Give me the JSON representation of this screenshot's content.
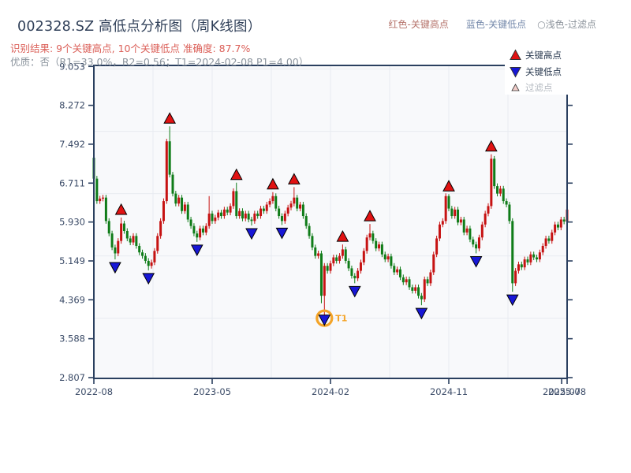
{
  "header": {
    "title": "002328.SZ 高低点分析图（周K线图）",
    "subtitle_result": "识别结果: 9个关键高点, 10个关键低点  准确度: 87.7%",
    "subtitle_quality": "优质：否（R1=33.0%，R2=0.56；T1=2024-02-08 P1=4.00）",
    "legend_top": [
      {
        "label": "红色-关键高点",
        "color": "#b5736b"
      },
      {
        "label": "蓝色-关键低点",
        "color": "#7488aa"
      },
      {
        "label": "○浅色-过滤点",
        "color": "#8d949c"
      }
    ]
  },
  "legend_box": {
    "items": [
      {
        "label": "关键高点",
        "marker": "up-triangle",
        "fill": "#e11212",
        "text_color": "#2a3a50"
      },
      {
        "label": "关键低点",
        "marker": "down-triangle",
        "fill": "#1717d6",
        "text_color": "#2a3a50"
      },
      {
        "label": "过滤点",
        "marker": "small-up-triangle",
        "fill": "#f2cdc9",
        "text_color": "#b3b9c0"
      }
    ]
  },
  "chart_data": {
    "type": "candlestick",
    "title": "002328.SZ 周K线",
    "convention": "red = up week, green = down week",
    "colors": {
      "up": "#c61212",
      "down": "#0f7c18",
      "key_high_marker": "#e11212",
      "key_low_marker": "#1717d6",
      "marker_edge": "#000000",
      "t1_ring": "#f4a428",
      "spine": "#2a3f5f",
      "tick_label": "#3c4c68",
      "grid": "#e8ebf1",
      "plot_bg": "#f8f9fb"
    },
    "y_ticks": [
      {
        "label": "2.807",
        "value": 2.807
      },
      {
        "label": "3.588",
        "value": 3.588
      },
      {
        "label": "4.369",
        "value": 4.369
      },
      {
        "label": "5.149",
        "value": 5.149
      },
      {
        "label": "5.930",
        "value": 5.93
      },
      {
        "label": "6.711",
        "value": 6.711
      },
      {
        "label": "7.492",
        "value": 7.492
      },
      {
        "label": "8.272",
        "value": 8.272
      },
      {
        "label": "9.053",
        "value": 9.053
      }
    ],
    "x_ticks": [
      {
        "label": "2022-08",
        "week": 0
      },
      {
        "label": "2023-05",
        "week": 39
      },
      {
        "label": "2024-02",
        "week": 78
      },
      {
        "label": "2024-11",
        "week": 117
      },
      {
        "label": "2025-07",
        "week": 154.2
      },
      {
        "label": "2025-08",
        "week": 156
      }
    ],
    "y_range": [
      2.807,
      9.053
    ],
    "grid_y_values": [
      4.0,
      5.25,
      6.5,
      7.75,
      9.0
    ],
    "grid_x_weeks": [
      19.5,
      39,
      58.5,
      78,
      97.5,
      117,
      136.5
    ],
    "open_first": 7.22,
    "wick_pad": 0.055,
    "closes": [
      6.8,
      6.35,
      6.4,
      6.42,
      5.95,
      5.7,
      5.42,
      5.3,
      5.55,
      5.9,
      5.75,
      5.6,
      5.52,
      5.65,
      5.45,
      5.32,
      5.25,
      5.15,
      5.05,
      5.12,
      5.35,
      5.65,
      5.95,
      6.35,
      7.55,
      6.88,
      6.5,
      6.3,
      6.42,
      6.15,
      6.28,
      5.98,
      5.85,
      5.7,
      5.62,
      5.8,
      5.72,
      5.85,
      6.1,
      5.95,
      6.02,
      6.12,
      6.05,
      6.18,
      6.12,
      6.25,
      6.55,
      6.05,
      6.15,
      6.0,
      6.1,
      5.98,
      5.95,
      6.1,
      6.05,
      6.2,
      6.15,
      6.28,
      6.35,
      6.45,
      6.2,
      6.05,
      5.95,
      6.1,
      6.22,
      6.3,
      6.42,
      6.2,
      6.28,
      6.05,
      5.85,
      5.65,
      5.42,
      5.25,
      5.3,
      4.45,
      5.05,
      4.95,
      5.1,
      5.22,
      5.15,
      5.25,
      5.38,
      5.15,
      5.0,
      4.85,
      4.8,
      4.95,
      5.12,
      5.35,
      5.62,
      5.7,
      5.55,
      5.4,
      5.48,
      5.28,
      5.18,
      5.24,
      5.05,
      4.92,
      4.98,
      4.82,
      4.72,
      4.78,
      4.62,
      4.55,
      4.62,
      4.45,
      4.38,
      4.78,
      4.7,
      4.92,
      5.28,
      5.6,
      5.88,
      5.95,
      6.45,
      6.2,
      6.05,
      6.18,
      5.92,
      5.98,
      5.72,
      5.8,
      5.58,
      5.48,
      5.4,
      5.62,
      5.88,
      6.1,
      6.25,
      7.2,
      6.65,
      6.5,
      6.6,
      6.35,
      6.28,
      5.95,
      4.7,
      4.95,
      5.08,
      5.02,
      5.18,
      5.12,
      5.28,
      5.22,
      5.18,
      5.32,
      5.45,
      5.6,
      5.55,
      5.72,
      5.88,
      5.82,
      5.98,
      5.94,
      6.18
    ],
    "overrides": {
      "7": {
        "low": 5.18
      },
      "9": {
        "high": 6.02
      },
      "18": {
        "low": 4.96
      },
      "24": {
        "high": 7.6
      },
      "25": {
        "high": 7.85
      },
      "34": {
        "low": 5.53
      },
      "38": {
        "high": 6.45
      },
      "47": {
        "high": 6.72
      },
      "52": {
        "low": 5.86
      },
      "59": {
        "high": 6.53
      },
      "62": {
        "low": 5.87
      },
      "66": {
        "high": 6.63
      },
      "75": {
        "low": 4.3
      },
      "76": {
        "low": 4.0
      },
      "82": {
        "high": 5.48
      },
      "86": {
        "low": 4.7
      },
      "91": {
        "high": 5.89
      },
      "108": {
        "low": 4.26
      },
      "117": {
        "high": 6.49
      },
      "126": {
        "low": 5.3
      },
      "131": {
        "high": 7.29
      },
      "138": {
        "low": 4.53
      },
      "156": {
        "high": 6.35
      }
    },
    "key_highs": [
      {
        "week": 9,
        "price": 6.02
      },
      {
        "week": 25,
        "price": 7.85
      },
      {
        "week": 47,
        "price": 6.72
      },
      {
        "week": 59,
        "price": 6.53
      },
      {
        "week": 66,
        "price": 6.63
      },
      {
        "week": 82,
        "price": 5.48
      },
      {
        "week": 91,
        "price": 5.89
      },
      {
        "week": 117,
        "price": 6.49
      },
      {
        "week": 131,
        "price": 7.29
      }
    ],
    "key_lows": [
      {
        "week": 7,
        "price": 5.18
      },
      {
        "week": 18,
        "price": 4.96
      },
      {
        "week": 34,
        "price": 5.53
      },
      {
        "week": 52,
        "price": 5.86
      },
      {
        "week": 62,
        "price": 5.87
      },
      {
        "week": 76,
        "price": 4.0,
        "t1": true
      },
      {
        "week": 86,
        "price": 4.7
      },
      {
        "week": 108,
        "price": 4.26
      },
      {
        "week": 126,
        "price": 5.3
      },
      {
        "week": 138,
        "price": 4.53
      }
    ],
    "t1_annotation": {
      "week": 76,
      "price": 4.0,
      "label": "T1"
    }
  }
}
